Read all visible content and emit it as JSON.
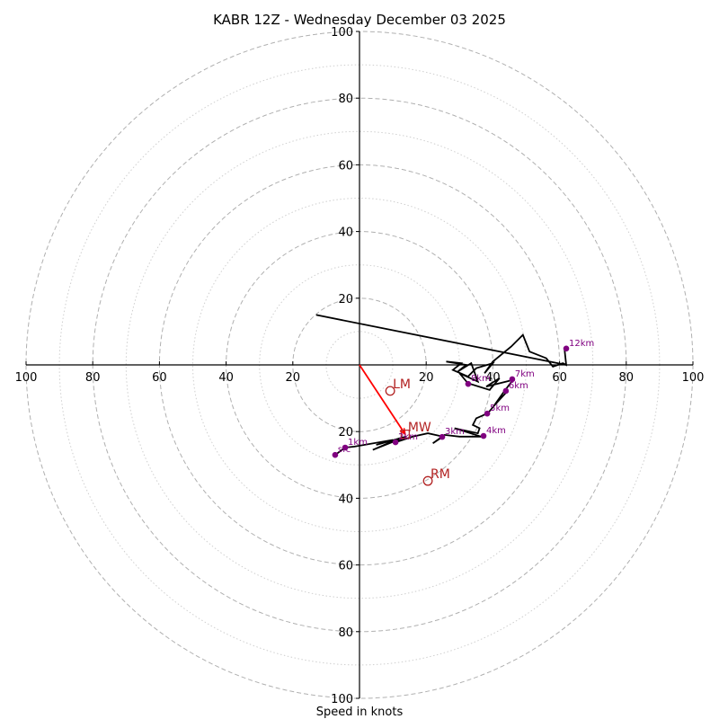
{
  "chart_data": {
    "type": "hodograph",
    "title": "KABR 12Z - Wednesday December 03 2025",
    "xlabel": "Speed in knots",
    "ylabel": "",
    "range_knots": 100,
    "ring_step": 10,
    "axis_ticks": [
      20,
      40,
      60,
      80,
      100
    ],
    "grid": true,
    "colors": {
      "hodograph": "#000000",
      "height_marker": "#800080",
      "motion": "#b22222",
      "mean_wind_vector": "#ff0000",
      "ring": "#b0b0b0"
    },
    "hodograph_trace": [
      [
        -7.3,
        -27.0
      ],
      [
        -4.3,
        -24.8
      ],
      [
        -1.5,
        -24.5
      ],
      [
        10.0,
        -22.5
      ],
      [
        5.0,
        -24.0
      ],
      [
        14.0,
        -21.5
      ],
      [
        4.0,
        -25.5
      ],
      [
        12.0,
        -22.0
      ],
      [
        10.8,
        -23.2
      ],
      [
        16.0,
        -21.5
      ],
      [
        20.5,
        -20.5
      ],
      [
        25.0,
        -21.5
      ],
      [
        22.0,
        -23.5
      ],
      [
        25.5,
        -21.0
      ],
      [
        30.0,
        -21.5
      ],
      [
        36.5,
        -21.5
      ],
      [
        28.5,
        -19.0
      ],
      [
        35.5,
        -20.5
      ],
      [
        36.0,
        -19.0
      ],
      [
        34.0,
        -18.0
      ],
      [
        35.0,
        -16.0
      ],
      [
        38.5,
        -14.5
      ],
      [
        41.0,
        -11.5
      ],
      [
        44.0,
        -8.3
      ],
      [
        40.5,
        -12.0
      ],
      [
        43.0,
        -8.5
      ],
      [
        46.0,
        -4.5
      ],
      [
        38.0,
        -6.5
      ],
      [
        42.0,
        -4.0
      ],
      [
        39.0,
        -7.5
      ],
      [
        32.5,
        -5.5
      ],
      [
        30.0,
        -2.5
      ],
      [
        35.5,
        -5.0
      ],
      [
        33.5,
        0.5
      ],
      [
        29.5,
        -2.0
      ],
      [
        32.0,
        0.0
      ],
      [
        26.0,
        1.0
      ],
      [
        30.5,
        0.5
      ],
      [
        28.0,
        -1.5
      ],
      [
        32.5,
        -3.5
      ],
      [
        35.0,
        -1.0
      ],
      [
        40.0,
        0.5
      ],
      [
        37.5,
        -2.5
      ],
      [
        40.0,
        1.0
      ],
      [
        45.5,
        5.5
      ],
      [
        49.0,
        9.0
      ],
      [
        51.0,
        4.0
      ],
      [
        56.0,
        2.0
      ],
      [
        58.0,
        -0.5
      ],
      [
        61.0,
        0.5
      ],
      [
        62.0,
        0.0
      ],
      [
        61.5,
        4.5
      ],
      [
        62.0,
        0.0
      ],
      [
        -13.0,
        15.0
      ]
    ],
    "height_markers": [
      {
        "label": "sfc",
        "u": -7.3,
        "v": -27.0
      },
      {
        "label": "1km",
        "u": -4.3,
        "v": -24.8
      },
      {
        "label": "2km",
        "u": 10.8,
        "v": -23.2
      },
      {
        "label": "3km",
        "u": 24.8,
        "v": -21.6
      },
      {
        "label": "4km",
        "u": 37.2,
        "v": -21.3
      },
      {
        "label": "5km",
        "u": 38.3,
        "v": -14.6
      },
      {
        "label": "6km",
        "u": 43.9,
        "v": -7.8
      },
      {
        "label": "7km",
        "u": 45.8,
        "v": -4.3
      },
      {
        "label": "8km",
        "u": 32.6,
        "v": -5.7
      },
      {
        "label": "12km",
        "u": 62.0,
        "v": 4.9
      }
    ],
    "storm_motions": [
      {
        "label": "LM",
        "u": 9.2,
        "v": -7.8,
        "marker": "circle"
      },
      {
        "label": "MW",
        "u": 13.7,
        "v": -20.8,
        "marker": "square"
      },
      {
        "label": "RM",
        "u": 20.5,
        "v": -34.8,
        "marker": "circle"
      }
    ],
    "mean_wind_vector": {
      "u": 13.7,
      "v": -20.8
    }
  }
}
